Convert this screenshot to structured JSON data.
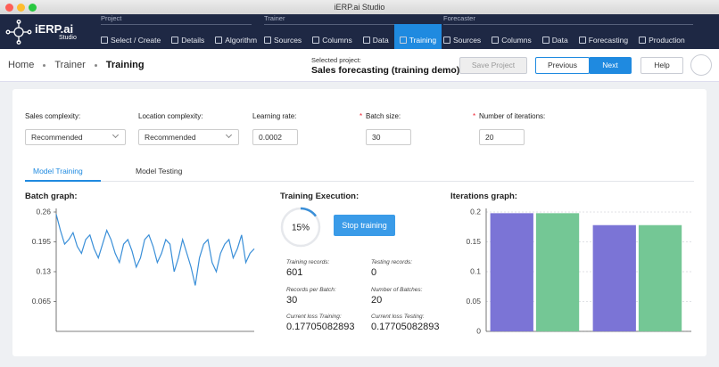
{
  "window": {
    "title": "iERP.ai Studio"
  },
  "brand": {
    "name": "iERP.ai",
    "sub": "Studio"
  },
  "nav": {
    "groups": [
      {
        "label": "Project",
        "items": [
          "Select / Create",
          "Details",
          "Algorithm"
        ]
      },
      {
        "label": "Trainer",
        "items": [
          "Sources",
          "Columns",
          "Data",
          "Training"
        ]
      },
      {
        "label": "Forecaster",
        "items": [
          "Sources",
          "Columns",
          "Data",
          "Forecasting",
          "Production"
        ]
      }
    ]
  },
  "header": {
    "breadcrumbs": [
      "Home",
      "Trainer",
      "Training"
    ],
    "project_label": "Selected project:",
    "project_name": "Sales forecasting (training demo)",
    "buttons": [
      "Save Project",
      "Previous",
      "Next",
      "Help"
    ]
  },
  "form": {
    "fields": [
      {
        "label": "Sales complexity:",
        "value": "Recommended"
      },
      {
        "label": "Location complexity:",
        "value": "Recommended"
      },
      {
        "label": "Learning rate:",
        "value": "0.0002"
      },
      {
        "mark": "*",
        "label": "Batch size:",
        "value": "30"
      },
      {
        "mark": "*",
        "label": "Number of iterations:",
        "value": "20"
      }
    ]
  },
  "tabs": [
    "Model Training",
    "Model Testing"
  ],
  "training_execution": {
    "title": "Training Execution:",
    "progress": {
      "value": 15,
      "label": "15%"
    },
    "button": "Stop training",
    "stats": [
      {
        "label": "Training records:",
        "value": "601"
      },
      {
        "label": "Testing records:",
        "value": "0"
      },
      {
        "label": "Records per Batch:",
        "value": "30"
      },
      {
        "label": "Number of Batches:",
        "value": "20"
      },
      {
        "label": "Current loss Training:",
        "value": "0.17705082893"
      },
      {
        "label": "Current loss Testing:",
        "value": "0.17705082893"
      }
    ]
  },
  "chart_data": [
    {
      "type": "line",
      "title": "Batch graph:",
      "color": "#3a8fd8",
      "values": [
        0.255,
        0.22,
        0.19,
        0.2,
        0.215,
        0.185,
        0.17,
        0.2,
        0.21,
        0.18,
        0.16,
        0.19,
        0.22,
        0.2,
        0.17,
        0.15,
        0.19,
        0.2,
        0.175,
        0.14,
        0.16,
        0.2,
        0.21,
        0.185,
        0.15,
        0.17,
        0.2,
        0.19,
        0.13,
        0.16,
        0.2,
        0.17,
        0.14,
        0.1,
        0.16,
        0.19,
        0.2,
        0.15,
        0.13,
        0.17,
        0.19,
        0.2,
        0.16,
        0.18,
        0.21,
        0.15,
        0.17,
        0.18
      ],
      "ylim": [
        0,
        0.26
      ],
      "yticks": [
        0.065,
        0.13,
        0.195,
        0.26
      ]
    },
    {
      "type": "bar",
      "title": "Iterations graph:",
      "categories": [
        null,
        null
      ],
      "series": [
        {
          "color": "#7b74d6",
          "values": [
            0.198,
            0.178
          ]
        },
        {
          "color": "#74c795",
          "values": [
            0.198,
            0.178
          ]
        }
      ],
      "ylim": [
        0,
        0.2
      ],
      "yticks": [
        0,
        0.05,
        0.1,
        0.15,
        0.2
      ],
      "grid": true
    }
  ]
}
